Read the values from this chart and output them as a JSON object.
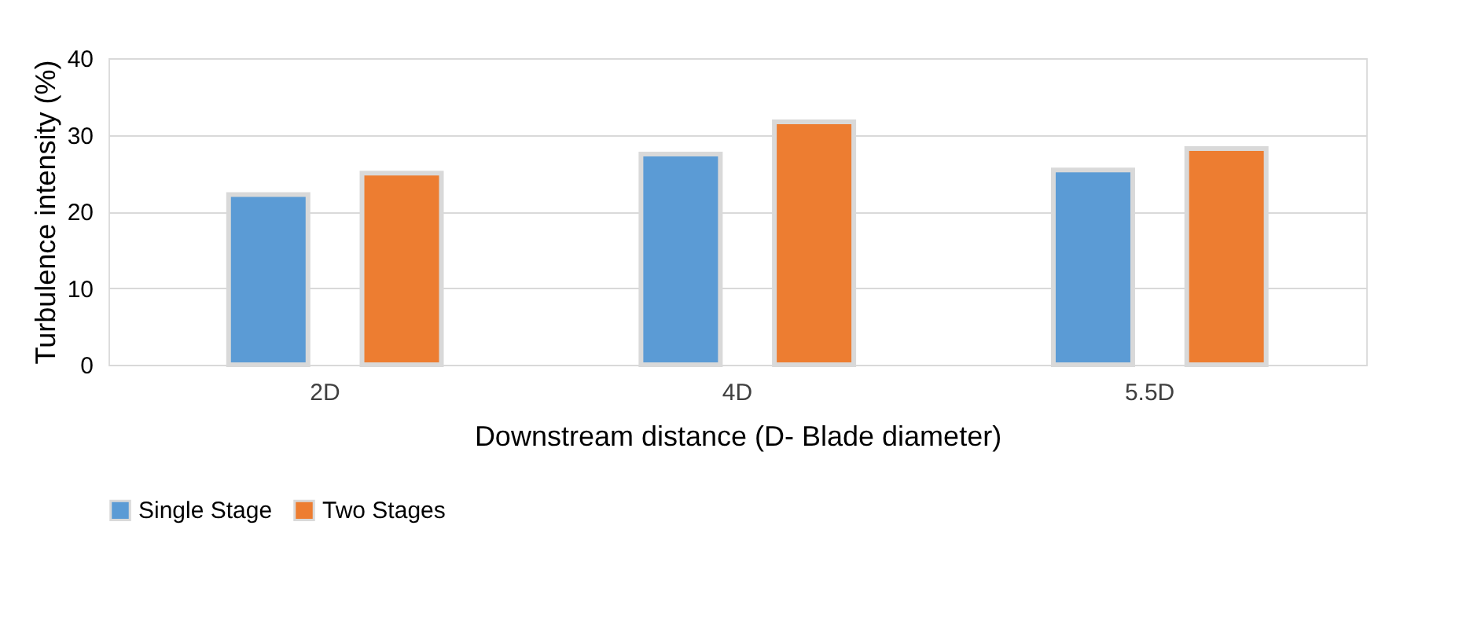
{
  "chart_data": {
    "type": "bar",
    "xlabel": "Downstream distance (D- Blade diameter)",
    "ylabel": "Turbulence intensity (%)",
    "categories": [
      "2D",
      "4D",
      "5.5D"
    ],
    "series": [
      {
        "name": "Single Stage",
        "color": "#5b9bd5",
        "values": [
          22.2,
          27.5,
          25.4
        ]
      },
      {
        "name": "Two Stages",
        "color": "#ed7d31",
        "values": [
          25.0,
          31.7,
          28.2
        ]
      }
    ],
    "ylim": [
      0,
      40
    ],
    "yticks": [
      0,
      10,
      20,
      30,
      40
    ],
    "grid": "y",
    "legend": "bottom"
  }
}
